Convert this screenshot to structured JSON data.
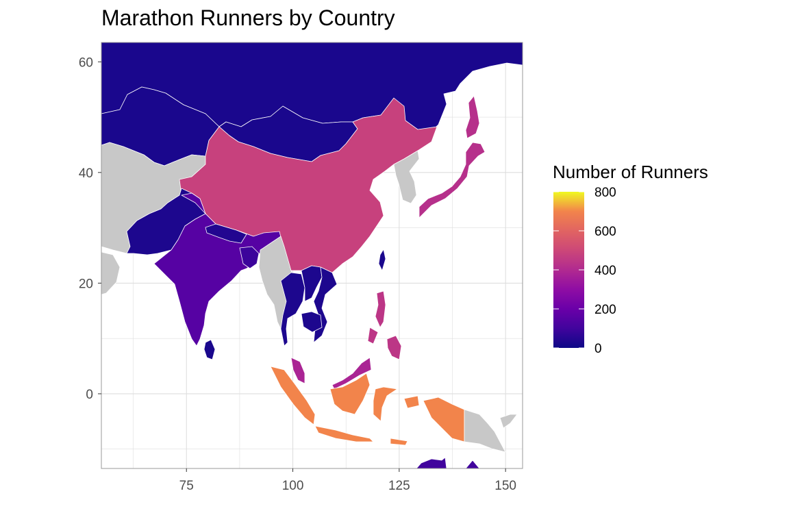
{
  "title": "Marathon Runners by Country",
  "colors": {
    "panel_border": "#999999",
    "grid": "#dedede",
    "no_data": "#c8c8c8",
    "country_border": "#ffffff"
  },
  "chart_data": {
    "type": "choropleth",
    "title": "Marathon Runners by Country",
    "x_ticks": [
      75,
      100,
      125,
      150
    ],
    "y_ticks": [
      60,
      40,
      20,
      0
    ],
    "x_range": [
      55,
      154
    ],
    "y_range": [
      -13.5,
      63.5
    ],
    "legend": {
      "title": "Number of Runners",
      "scale": "plasma",
      "range": [
        0,
        800
      ],
      "ticks": [
        800,
        600,
        400,
        200,
        0
      ],
      "placement": "right"
    },
    "regions": [
      {
        "name": "Russia",
        "value": 25
      },
      {
        "name": "Kazakhstan",
        "value": 25
      },
      {
        "name": "Mongolia",
        "value": 25
      },
      {
        "name": "China",
        "value": 480
      },
      {
        "name": "India",
        "value": 150
      },
      {
        "name": "Pakistan",
        "value": 30
      },
      {
        "name": "Nepal",
        "value": 40
      },
      {
        "name": "Bangladesh",
        "value": 90
      },
      {
        "name": "Sri Lanka",
        "value": 25
      },
      {
        "name": "Thailand",
        "value": 30
      },
      {
        "name": "Cambodia",
        "value": 30
      },
      {
        "name": "Vietnam",
        "value": 30
      },
      {
        "name": "Laos",
        "value": 30
      },
      {
        "name": "Malaysia",
        "value": 380
      },
      {
        "name": "Indonesia",
        "value": 700
      },
      {
        "name": "Philippines",
        "value": 440
      },
      {
        "name": "Japan",
        "value": 420
      },
      {
        "name": "Taiwan",
        "value": 25
      },
      {
        "name": "Australia",
        "value": 100
      }
    ]
  }
}
